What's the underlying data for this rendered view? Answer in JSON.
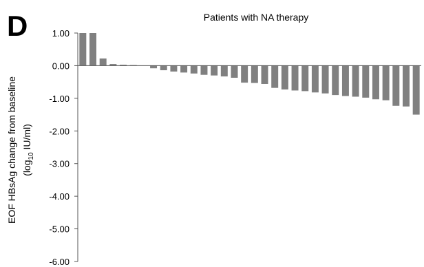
{
  "panel_letter": "D",
  "chart_data": {
    "type": "bar",
    "title": "Patients with NA therapy",
    "ylabel_line1": "EOF HBsAg change from baseline",
    "ylabel_line2_pre": "(log",
    "ylabel_line2_sub": "10",
    "ylabel_line2_post": " IU/ml)",
    "ylim": [
      -6.0,
      1.0
    ],
    "yticks": [
      1.0,
      0.0,
      -1.0,
      -2.0,
      -3.0,
      -4.0,
      -5.0,
      -6.0
    ],
    "ytick_labels": [
      "1.00",
      "0.00",
      "-1.00",
      "-2.00",
      "-3.00",
      "-4.00",
      "-5.00",
      "-6.00"
    ],
    "bar_color": "#808080",
    "values": [
      1.0,
      1.0,
      0.22,
      0.05,
      0.03,
      0.02,
      0.0,
      -0.08,
      -0.14,
      -0.18,
      -0.21,
      -0.24,
      -0.28,
      -0.3,
      -0.33,
      -0.37,
      -0.52,
      -0.53,
      -0.56,
      -0.68,
      -0.73,
      -0.76,
      -0.78,
      -0.82,
      -0.85,
      -0.9,
      -0.93,
      -0.95,
      -0.98,
      -1.03,
      -1.06,
      -1.23,
      -1.25,
      -1.5
    ]
  }
}
